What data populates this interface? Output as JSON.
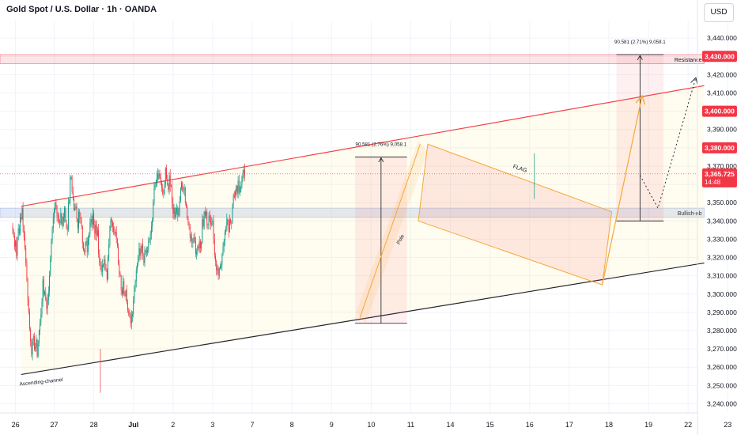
{
  "header": {
    "title": "Gold Spot / U.S. Dollar · 1h · OANDA",
    "currency": "USD"
  },
  "chart_data": {
    "type": "candlestick",
    "title": "Gold Spot / U.S. Dollar · 1h · OANDA",
    "ylim": [
      3235,
      3447
    ],
    "y_ticks": [
      "3,440.000",
      "3,430.000",
      "3,420.000",
      "3,410.000",
      "3,400.000",
      "3,390.000",
      "3,380.000",
      "3,370.000",
      "3,360.000",
      "3,350.000",
      "3,340.000",
      "3,330.000",
      "3,320.000",
      "3,310.000",
      "3,300.000",
      "3,290.000",
      "3,280.000",
      "3,270.000",
      "3,260.000",
      "3,250.000",
      "3,240.000"
    ],
    "x_ticks": [
      {
        "label": "26",
        "t": 3
      },
      {
        "label": "27",
        "t": 44
      },
      {
        "label": "28",
        "t": 86
      },
      {
        "label": "Jul",
        "t": 128,
        "bold": true
      },
      {
        "label": "2",
        "t": 170
      },
      {
        "label": "3",
        "t": 212
      },
      {
        "label": "7",
        "t": 254
      },
      {
        "label": "8",
        "t": 296
      },
      {
        "label": "9",
        "t": 338
      },
      {
        "label": "10",
        "t": 380
      },
      {
        "label": "11",
        "t": 422
      },
      {
        "label": "14",
        "t": 464
      },
      {
        "label": "15",
        "t": 506
      },
      {
        "label": "16",
        "t": 548
      },
      {
        "label": "17",
        "t": 590
      },
      {
        "label": "18",
        "t": 632
      },
      {
        "label": "19",
        "t": 674
      },
      {
        "label": "22",
        "t": 716
      },
      {
        "label": "23",
        "t": 758
      }
    ],
    "price_labels": [
      {
        "value": 3430,
        "text": "3,430.000"
      },
      {
        "value": 3400,
        "text": "3,400.000"
      },
      {
        "value": 3380,
        "text": "3,380.000"
      }
    ],
    "current_price": {
      "value": 3365.725,
      "text": "3,365.725",
      "countdown": "14:48"
    },
    "zones": [
      {
        "name": "Resistance",
        "from": 3426,
        "to": 3431,
        "t_start": 0,
        "t_end": 733
      },
      {
        "name": "Bullish-ob",
        "from": 3342,
        "to": 3347,
        "t_start": 0,
        "t_end": 733
      }
    ],
    "upper_line": {
      "t1": 9,
      "v1": 3348,
      "t2": 733,
      "v2": 3414
    },
    "lower_line": {
      "t1": 9,
      "v1": 3256,
      "t2": 733,
      "v2": 3317
    },
    "channel_label": "Ascending-channel",
    "measure_boxes": [
      {
        "t1": 363,
        "t2": 418,
        "low": 3284,
        "high": 3375,
        "label": "90.581 (2.76%) 9,058.1"
      },
      {
        "t1": 640,
        "t2": 690,
        "low": 3340,
        "high": 3431,
        "label": "90.581 (2.71%) 9,058.1"
      }
    ],
    "flag": {
      "label": "FLAG",
      "pole_label": "Pole",
      "upper_t1": 440,
      "upper_v1": 3382,
      "upper_t2": 635,
      "upper_v2": 3345,
      "lower_t1": 430,
      "lower_v1": 3340,
      "lower_t2": 625,
      "lower_v2": 3305
    },
    "projections": [
      {
        "style": "solid",
        "from": [
          625,
          3305
        ],
        "to": [
          667,
          3408
        ]
      },
      {
        "style": "dotted",
        "from": [
          665,
          3365
        ],
        "to": [
          684,
          3347
        ],
        "to2": [
          724,
          3418
        ]
      }
    ],
    "closes": [
      3335,
      3332,
      3326,
      3329,
      3321,
      3330,
      3336,
      3333,
      3342,
      3341,
      3347,
      3337,
      3331,
      3325,
      3317,
      3308,
      3297,
      3290,
      3281,
      3274,
      3267,
      3275,
      3277,
      3270,
      3271,
      3275,
      3266,
      3273,
      3280,
      3284,
      3289,
      3296,
      3308,
      3300,
      3301,
      3297,
      3292,
      3297,
      3301,
      3310,
      3319,
      3329,
      3336,
      3342,
      3346,
      3350,
      3348,
      3343,
      3342,
      3340,
      3339,
      3344,
      3338,
      3340,
      3342,
      3347,
      3340,
      3336,
      3335,
      3350,
      3350,
      3364,
      3364,
      3356,
      3352,
      3346,
      3347,
      3348,
      3341,
      3336,
      3345,
      3342,
      3341,
      3337,
      3328,
      3324,
      3323,
      3328,
      3329,
      3323,
      3330,
      3333,
      3339,
      3341,
      3338,
      3344,
      3338,
      3333,
      3338,
      3332,
      3335,
      3322,
      3317,
      3316,
      3312,
      3316,
      3316,
      3319,
      3314,
      3313,
      3308,
      3320,
      3327,
      3337,
      3341,
      3339,
      3337,
      3334,
      3333,
      3334,
      3330,
      3326,
      3317,
      3311,
      3310,
      3302,
      3300,
      3307,
      3300,
      3299,
      3302,
      3295,
      3291,
      3289,
      3289,
      3284,
      3288,
      3289,
      3296,
      3304,
      3307,
      3313,
      3316,
      3320,
      3325,
      3321,
      3325,
      3327,
      3321,
      3317,
      3324,
      3323,
      3323,
      3324,
      3329,
      3330,
      3333,
      3337,
      3340,
      3350,
      3358,
      3360,
      3362,
      3366,
      3363,
      3366,
      3364,
      3361,
      3358,
      3355,
      3355,
      3360,
      3369,
      3363,
      3360,
      3357,
      3365,
      3359,
      3359,
      3350,
      3344,
      3347,
      3342,
      3345,
      3347,
      3343,
      3345,
      3351,
      3358,
      3361,
      3357,
      3357,
      3358,
      3350,
      3348,
      3342,
      3339,
      3337,
      3331,
      3331,
      3328,
      3329,
      3331,
      3329,
      3322,
      3323,
      3326,
      3325,
      3329,
      3325,
      3328,
      3341,
      3337,
      3345,
      3343,
      3345,
      3338,
      3338,
      3343,
      3340,
      3338,
      3339,
      3340,
      3330,
      3321,
      3318,
      3313,
      3314,
      3310,
      3314,
      3315,
      3316,
      3322,
      3326,
      3329,
      3334,
      3335,
      3341,
      3338,
      3334,
      3341,
      3339,
      3339,
      3349,
      3354,
      3353,
      3356,
      3359,
      3355,
      3362,
      3356,
      3356,
      3359,
      3364,
      3366,
      3368,
      3365
    ]
  }
}
